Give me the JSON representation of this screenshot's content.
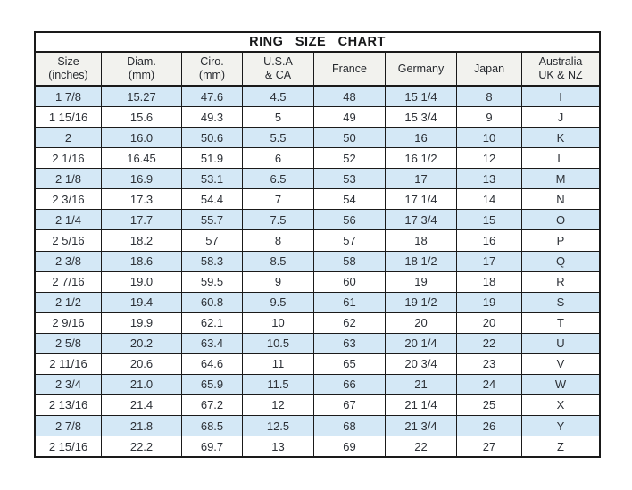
{
  "title": "RING SIZE CHART",
  "colors": {
    "border": "#1a1a1a",
    "header_bg": "#f2f2ee",
    "row_shaded": "#d4e8f6",
    "row_plain": "#ffffff",
    "text": "#2c3036"
  },
  "chart_data": {
    "type": "table",
    "title": "RING SIZE CHART",
    "legend_position": "none",
    "grid": true,
    "columns": [
      "Size\n(inches)",
      "Diam.\n(mm)",
      "Ciro.\n(mm)",
      "U.S.A\n& CA",
      "France",
      "Germany",
      "Japan",
      "Australia\nUK & NZ"
    ],
    "rows": [
      [
        "1 7/8",
        "15.27",
        "47.6",
        "4.5",
        "48",
        "15 1/4",
        "8",
        "I"
      ],
      [
        "1 15/16",
        "15.6",
        "49.3",
        "5",
        "49",
        "15 3/4",
        "9",
        "J"
      ],
      [
        "2",
        "16.0",
        "50.6",
        "5.5",
        "50",
        "16",
        "10",
        "K"
      ],
      [
        "2 1/16",
        "16.45",
        "51.9",
        "6",
        "52",
        "16 1/2",
        "12",
        "L"
      ],
      [
        "2 1/8",
        "16.9",
        "53.1",
        "6.5",
        "53",
        "17",
        "13",
        "M"
      ],
      [
        "2 3/16",
        "17.3",
        "54.4",
        "7",
        "54",
        "17 1/4",
        "14",
        "N"
      ],
      [
        "2 1/4",
        "17.7",
        "55.7",
        "7.5",
        "56",
        "17 3/4",
        "15",
        "O"
      ],
      [
        "2 5/16",
        "18.2",
        "57",
        "8",
        "57",
        "18",
        "16",
        "P"
      ],
      [
        "2 3/8",
        "18.6",
        "58.3",
        "8.5",
        "58",
        "18 1/2",
        "17",
        "Q"
      ],
      [
        "2 7/16",
        "19.0",
        "59.5",
        "9",
        "60",
        "19",
        "18",
        "R"
      ],
      [
        "2 1/2",
        "19.4",
        "60.8",
        "9.5",
        "61",
        "19 1/2",
        "19",
        "S"
      ],
      [
        "2 9/16",
        "19.9",
        "62.1",
        "10",
        "62",
        "20",
        "20",
        "T"
      ],
      [
        "2 5/8",
        "20.2",
        "63.4",
        "10.5",
        "63",
        "20 1/4",
        "22",
        "U"
      ],
      [
        "2 11/16",
        "20.6",
        "64.6",
        "11",
        "65",
        "20 3/4",
        "23",
        "V"
      ],
      [
        "2 3/4",
        "21.0",
        "65.9",
        "11.5",
        "66",
        "21",
        "24",
        "W"
      ],
      [
        "2 13/16",
        "21.4",
        "67.2",
        "12",
        "67",
        "21 1/4",
        "25",
        "X"
      ],
      [
        "2 7/8",
        "21.8",
        "68.5",
        "12.5",
        "68",
        "21 3/4",
        "26",
        "Y"
      ],
      [
        "2 15/16",
        "22.2",
        "69.7",
        "13",
        "69",
        "22",
        "27",
        "Z"
      ]
    ]
  }
}
